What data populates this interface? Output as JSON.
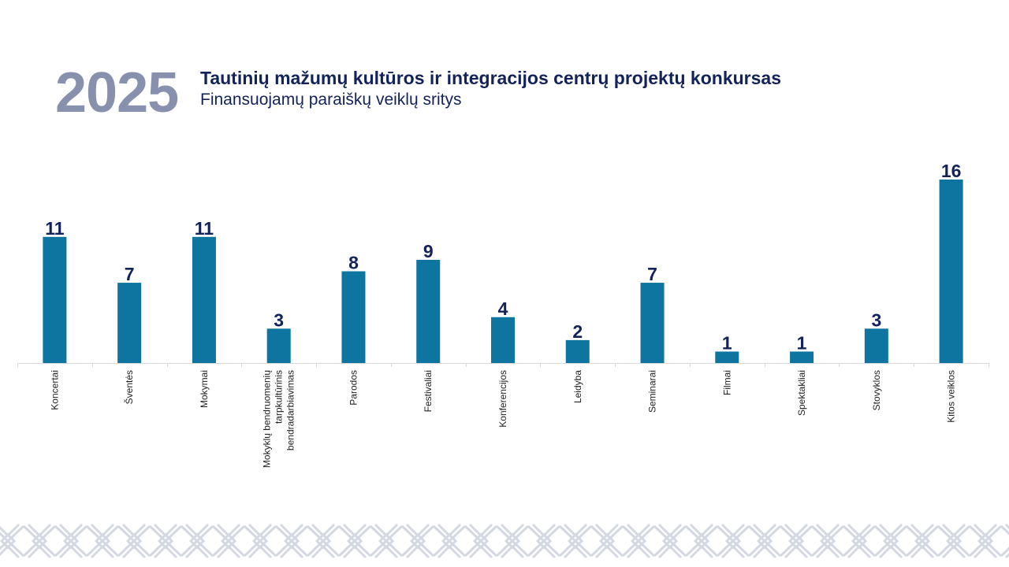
{
  "header": {
    "year": "2025",
    "title": "Tautinių mažumų kultūros ir integracijos centrų projektų konkursas",
    "subtitle": "Finansuojamų paraiškų veiklų sritys"
  },
  "colors": {
    "bar": "#0e74a0",
    "value_text": "#13235a",
    "year_text": "#8790ad",
    "axis": "#d9d9d9",
    "pattern": "#d4d8e3"
  },
  "decoration": {
    "footer_pattern": "interlaced-ornament"
  },
  "chart_data": {
    "type": "bar",
    "categories": [
      [
        "Koncertai"
      ],
      [
        "Šventės"
      ],
      [
        "Mokymai"
      ],
      [
        "Mokyklų bendruomenių",
        "tarpkultūrinis",
        "bendradarbiavimas"
      ],
      [
        "Parodos"
      ],
      [
        "Festivaliai"
      ],
      [
        "Konferencijos"
      ],
      [
        "Leidyba"
      ],
      [
        "Seminarai"
      ],
      [
        "Filmai"
      ],
      [
        "Spektakliai"
      ],
      [
        "Stovyklos"
      ],
      [
        "Kitos veiklos"
      ]
    ],
    "values": [
      11,
      7,
      11,
      3,
      8,
      9,
      4,
      2,
      7,
      1,
      1,
      3,
      16
    ],
    "data_labels": true,
    "ylim": [
      0,
      16
    ],
    "grid": false,
    "legend": false,
    "category_label_rotation": "vertical"
  }
}
